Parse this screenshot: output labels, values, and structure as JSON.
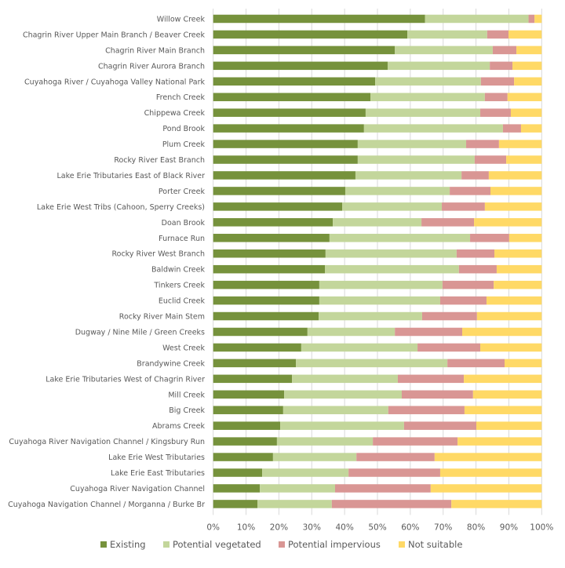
{
  "chart_data": {
    "type": "bar",
    "orientation": "horizontal",
    "stacked": "percent",
    "title": "",
    "xlabel": "",
    "ylabel": "",
    "xlim": [
      0,
      100
    ],
    "x_ticks": [
      "0%",
      "10%",
      "20%",
      "30%",
      "40%",
      "50%",
      "60%",
      "70%",
      "80%",
      "90%",
      "100%"
    ],
    "grid": "vertical",
    "legend_position": "bottom",
    "categories": [
      "Willow Creek",
      "Chagrin River Upper Main Branch / Beaver Creek",
      "Chagrin River Main Branch",
      "Chagrin River Aurora Branch",
      "Cuyahoga River / Cuyahoga Valley National Park",
      "French Creek",
      "Chippewa Creek",
      "Pond Brook",
      "Plum Creek",
      "Rocky River East Branch",
      "Lake Erie Tributaries East of Black River",
      "Porter Creek",
      "Lake Erie West Tribs (Cahoon, Sperry Creeks)",
      "Doan Brook",
      "Furnace Run",
      "Rocky River West Branch",
      "Baldwin Creek",
      "Tinkers Creek",
      "Euclid Creek",
      "Rocky River Main Stem",
      "Dugway / Nine Mile / Green Creeks",
      "West Creek",
      "Brandywine Creek",
      "Lake Erie Tributaries West of Chagrin River",
      "Mill Creek",
      "Big Creek",
      "Abrams Creek",
      "Cuyahoga River Navigation Channel / Kingsbury Run",
      "Lake Erie West Tributaries",
      "Lake Erie East Tributaries",
      "Cuyahoga River Navigation Channel",
      "Cuyahoga Navigation Channel / Morganna / Burke Br"
    ],
    "series": [
      {
        "name": "Existing",
        "color": "#76923c",
        "values": [
          64.5,
          59.1,
          55.3,
          53.1,
          49.3,
          47.9,
          46.4,
          45.9,
          44.0,
          44.0,
          43.3,
          40.2,
          39.3,
          36.4,
          35.4,
          34.2,
          34.0,
          32.3,
          32.3,
          32.1,
          28.7,
          26.8,
          25.2,
          24.0,
          21.6,
          21.3,
          20.4,
          19.4,
          18.2,
          14.9,
          14.2,
          13.5
        ]
      },
      {
        "name": "Potential vegetated",
        "color": "#c3d69b",
        "values": [
          31.5,
          24.3,
          29.8,
          31.1,
          32.2,
          34.8,
          34.9,
          42.3,
          33.0,
          35.6,
          32.3,
          31.8,
          30.3,
          27.0,
          42.8,
          39.9,
          40.8,
          37.5,
          36.8,
          31.5,
          26.6,
          35.4,
          46.1,
          32.2,
          35.8,
          32.0,
          37.7,
          29.2,
          25.4,
          26.3,
          22.9,
          22.6
        ]
      },
      {
        "name": "Potential impervious",
        "color": "#d99694",
        "values": [
          1.8,
          6.5,
          7.2,
          6.9,
          10.1,
          6.9,
          9.3,
          5.5,
          10.0,
          9.6,
          8.3,
          12.4,
          13.1,
          16.0,
          11.9,
          11.5,
          11.5,
          15.6,
          14.1,
          16.7,
          20.5,
          19.1,
          17.4,
          20.1,
          21.7,
          23.2,
          22.0,
          25.8,
          23.8,
          27.9,
          29.1,
          36.4
        ]
      },
      {
        "name": "Not suitable",
        "color": "#ffd966",
        "values": [
          2.2,
          10.1,
          7.7,
          8.9,
          8.4,
          10.4,
          9.4,
          6.3,
          13.0,
          10.8,
          16.1,
          15.6,
          17.3,
          20.6,
          9.9,
          14.4,
          13.7,
          14.6,
          16.8,
          19.7,
          24.2,
          18.7,
          11.3,
          23.7,
          20.9,
          23.5,
          19.9,
          25.6,
          32.6,
          30.9,
          33.8,
          27.5
        ]
      }
    ]
  }
}
